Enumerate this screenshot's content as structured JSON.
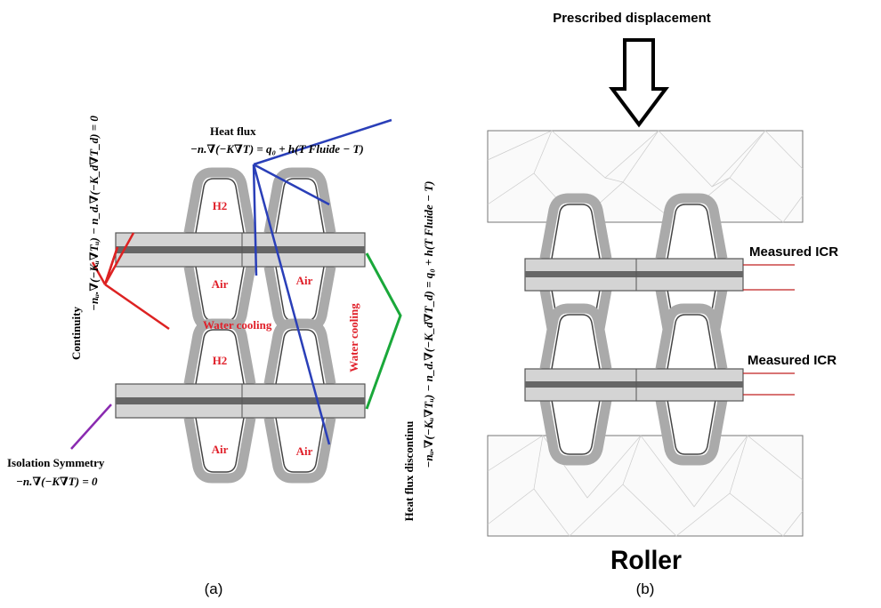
{
  "panel_a": {
    "heat_flux_title": "Heat flux",
    "heat_flux_eq": "−n.∇(−K∇T) = q₀ + h(T Fluide − T)",
    "labels": [
      "H2",
      "Air",
      "Air",
      "Water cooling",
      "H2",
      "Water cooling",
      "Air",
      "Air"
    ],
    "continuity_title": "Continuity",
    "continuity_eq": "−nᵤ.∇(−Kᵤ∇Tᵤ) − n_d.∇(−K_d∇T_d) = 0",
    "isolation_title": "Isolation Symmetry",
    "isolation_eq": "−n.∇(−K∇T) = 0",
    "discontinuity_title": "Heat flux discontinu",
    "discontinuity_eq": "−nᵤ.∇(−Kᵤ∇Tᵤ) − n_d.∇(−K_d∇T_d) = q₀ + h(T Fluide − T)",
    "caption": "(a)"
  },
  "panel_b": {
    "load_label": "Prescribed displacement",
    "icr_labels": [
      "Measured ICR",
      "Measured ICR"
    ],
    "roller_label": "Roller",
    "caption": "(b)"
  }
}
